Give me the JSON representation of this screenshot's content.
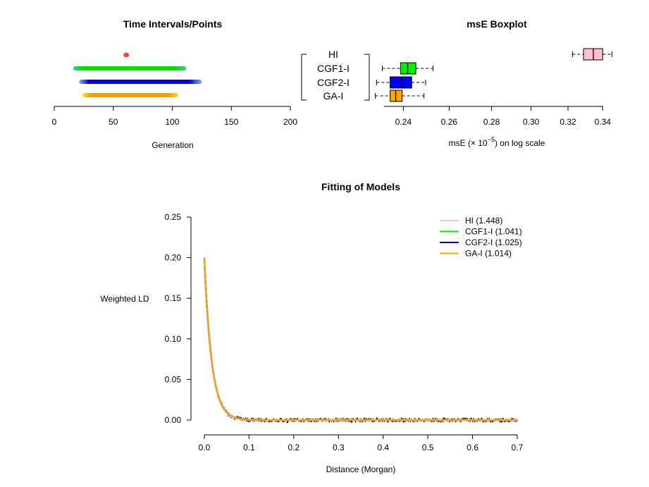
{
  "chart_data": [
    {
      "type": "timeline",
      "title": "Time Intervals/Points",
      "xlabel": "Generation",
      "xlim": [
        0,
        200
      ],
      "xticks": [
        0,
        50,
        100,
        150,
        200
      ],
      "tick_labels": [
        "0",
        "50",
        "100",
        "150",
        "200"
      ],
      "series": [
        {
          "name": "HI",
          "start": 61,
          "end": 61,
          "color": "#ef4444",
          "light": "#f87171"
        },
        {
          "name": "CGF1-I",
          "start": 16,
          "end": 112,
          "color": "#00e000",
          "light": "#4fc0a0"
        },
        {
          "name": "CGF2-I",
          "start": 21,
          "end": 125,
          "color": "#0000ee",
          "light": "#7ab8e8"
        },
        {
          "name": "GA-I",
          "start": 24,
          "end": 105,
          "color": "#f0a000",
          "light": "#ffe000"
        }
      ]
    },
    {
      "type": "boxplot",
      "title": "msE Boxplot",
      "xlabel_prefix": "msE (",
      "xlabel_times": "×",
      "xlabel_base": " 10",
      "xlabel_exp": "−5",
      "xlabel_suffix": ") on log scale",
      "log_scale": true,
      "xlim": [
        0.2275,
        0.3475
      ],
      "xticks": [
        0.24,
        0.26,
        0.28,
        0.3,
        0.32,
        0.34
      ],
      "tick_labels": [
        "0.24",
        "0.26",
        "0.28",
        "0.30",
        "0.32",
        "0.34"
      ],
      "categories": [
        "HI",
        "CGF1-I",
        "CGF2-I",
        "GA-I"
      ],
      "boxes": [
        {
          "name": "HI",
          "min": 0.3225,
          "q1": 0.3288,
          "median": 0.3345,
          "q3": 0.34,
          "max": 0.3455,
          "color": "#ffc0cb"
        },
        {
          "name": "CGF1-I",
          "min": 0.2313,
          "q1": 0.2388,
          "median": 0.2418,
          "q3": 0.2453,
          "max": 0.2528,
          "color": "#00ee00"
        },
        {
          "name": "CGF2-I",
          "min": 0.229,
          "q1": 0.2345,
          "median": 0.2393,
          "q3": 0.2435,
          "max": 0.2495,
          "color": "#0000ff"
        },
        {
          "name": "GA-I",
          "min": 0.2285,
          "q1": 0.2345,
          "median": 0.2368,
          "q3": 0.2395,
          "max": 0.2488,
          "color": "#ffa500"
        }
      ]
    },
    {
      "type": "line",
      "title": "Fitting of Models",
      "xlabel": "Distance (Morgan)",
      "ylabel": "Weighted LD",
      "xlim": [
        0,
        0.7
      ],
      "ylim": [
        0,
        0.25
      ],
      "xticks": [
        0,
        0.1,
        0.2,
        0.3,
        0.4,
        0.5,
        0.6,
        0.7
      ],
      "xtick_labels": [
        "0.0",
        "0.1",
        "0.2",
        "0.3",
        "0.4",
        "0.5",
        "0.6",
        "0.7"
      ],
      "yticks": [
        0,
        0.05,
        0.1,
        0.15,
        0.2,
        0.25
      ],
      "ytick_labels": [
        "0.00",
        "0.05",
        "0.10",
        "0.15",
        "0.20",
        "0.25"
      ],
      "observed": {
        "y0": 0.2,
        "decay_rate": 60,
        "noise": 0.0025,
        "color": "#000000"
      },
      "series": [
        {
          "name": "HI",
          "label": "HI (1.448)",
          "color": "#ffc0cb",
          "y0": 0.198,
          "decay_rate": 62
        },
        {
          "name": "CGF1-I",
          "label": "CGF1-I (1.041)",
          "color": "#00ee00",
          "y0": 0.199,
          "decay_rate": 60
        },
        {
          "name": "CGF2-I",
          "label": "CGF2-I (1.025)",
          "color": "#0000ff",
          "y0": 0.199,
          "decay_rate": 60
        },
        {
          "name": "GA-I",
          "label": "GA-I (1.014)",
          "color": "#ffa500",
          "y0": 0.199,
          "decay_rate": 60
        }
      ],
      "legend_position": "top-right"
    }
  ]
}
